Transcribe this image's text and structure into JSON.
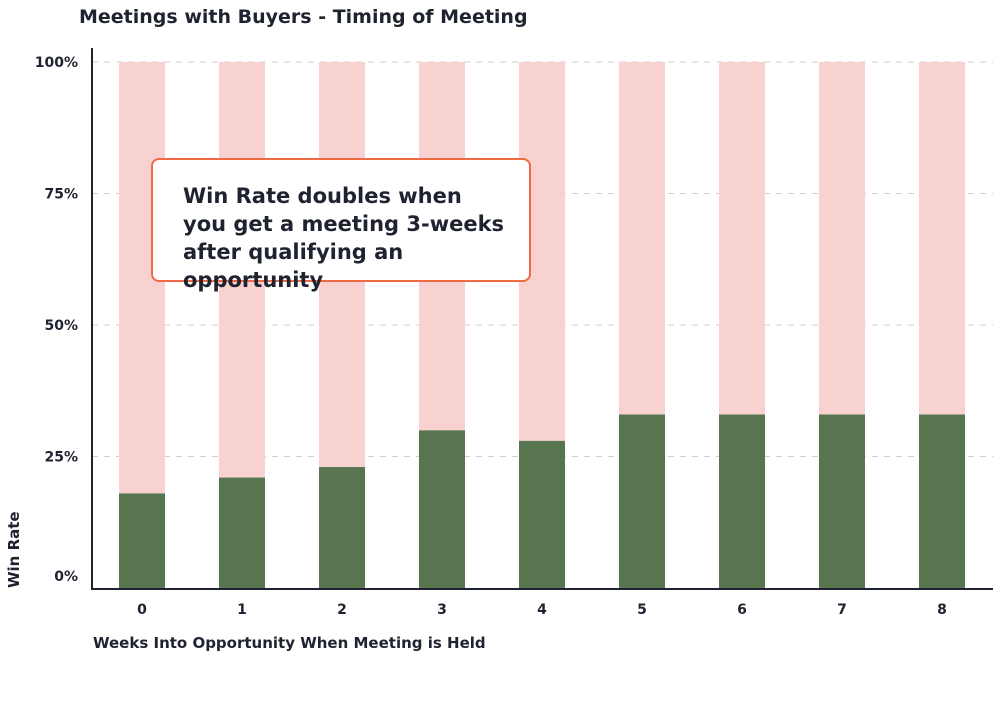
{
  "chart_data": {
    "type": "bar",
    "stacked": true,
    "title": "Meetings with Buyers - Timing of Meeting",
    "xlabel": "Weeks Into Opportunity When Meeting is Held",
    "ylabel": "Win Rate",
    "categories": [
      "0",
      "1",
      "2",
      "3",
      "4",
      "5",
      "6",
      "7",
      "8"
    ],
    "ylim": [
      0,
      1
    ],
    "yticks": [
      {
        "value": 0,
        "label": "0%"
      },
      {
        "value": 0.25,
        "label": "25%"
      },
      {
        "value": 0.5,
        "label": "50%"
      },
      {
        "value": 0.75,
        "label": "75%"
      },
      {
        "value": 1,
        "label": "100%"
      }
    ],
    "grid": true,
    "series": [
      {
        "values": [
          0.18,
          0.21,
          0.23,
          0.3,
          0.28,
          0.33,
          0.33,
          0.33,
          0.33
        ],
        "color": "#587550"
      },
      {
        "values": [
          0.82,
          0.79,
          0.77,
          0.7,
          0.72,
          0.67,
          0.67,
          0.67,
          0.67
        ],
        "color": "#f7d2d0"
      }
    ],
    "annotation": "Win Rate doubles when you get a meeting 3-weeks after qualifying an opportunity",
    "annotation_border_color": "#ef6b45"
  }
}
